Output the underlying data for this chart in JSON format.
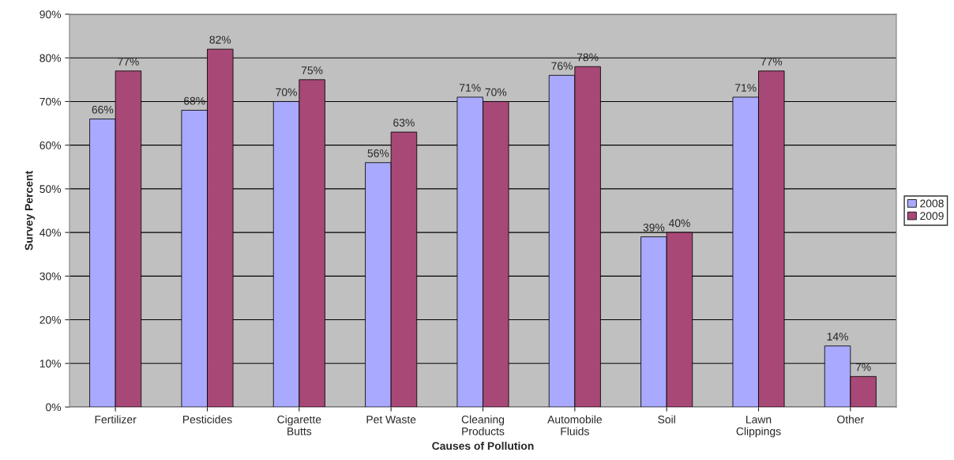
{
  "chart_data": {
    "type": "bar",
    "xlabel": "Causes of Pollution",
    "ylabel": "Survey Percent",
    "categories": [
      "Fertilizer",
      "Pesticides",
      "Cigarette\nButts",
      "Pet Waste",
      "Cleaning\nProducts",
      "Automobile\nFluids",
      "Soil",
      "Lawn\nClippings",
      "Other"
    ],
    "series": [
      {
        "name": "2008",
        "color": "#a9a9ff",
        "values": [
          66,
          68,
          70,
          56,
          71,
          76,
          39,
          71,
          14
        ],
        "value_labels": [
          "66%",
          "68%",
          "70%",
          "56%",
          "71%",
          "76%",
          "39%",
          "71%",
          "14%"
        ]
      },
      {
        "name": "2009",
        "color": "#a84877",
        "values": [
          77,
          82,
          75,
          63,
          70,
          78,
          40,
          77,
          7
        ],
        "value_labels": [
          "77%",
          "82%",
          "75%",
          "63%",
          "70%",
          "78%",
          "40%",
          "77%",
          "7%"
        ]
      }
    ],
    "ylim": [
      0,
      90
    ],
    "yticks": [
      {
        "value": 0,
        "label": "0%"
      },
      {
        "value": 10,
        "label": "10%"
      },
      {
        "value": 20,
        "label": "20%"
      },
      {
        "value": 30,
        "label": "30%"
      },
      {
        "value": 40,
        "label": "40%"
      },
      {
        "value": 50,
        "label": "50%"
      },
      {
        "value": 60,
        "label": "60%"
      },
      {
        "value": 70,
        "label": "70%"
      },
      {
        "value": 80,
        "label": "80%"
      },
      {
        "value": 90,
        "label": "90%"
      }
    ],
    "grid": "y",
    "legend": "right"
  }
}
